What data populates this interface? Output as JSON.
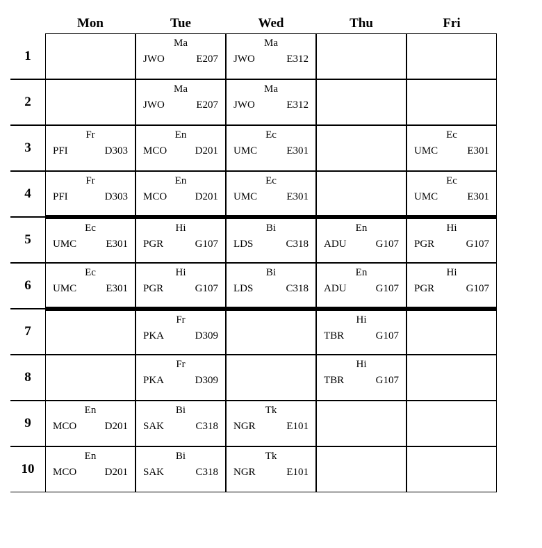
{
  "days": [
    "Mon",
    "Tue",
    "Wed",
    "Thu",
    "Fri"
  ],
  "periods": [
    "1",
    "2",
    "3",
    "4",
    "5",
    "6",
    "7",
    "8",
    "9",
    "10"
  ],
  "thickTopRows": [
    4,
    6
  ],
  "thickBotRows": [
    3,
    5
  ],
  "grid": [
    [
      null,
      {
        "subj": "Ma",
        "t": "JWO",
        "r": "E207"
      },
      {
        "subj": "Ma",
        "t": "JWO",
        "r": "E312"
      },
      null,
      null
    ],
    [
      null,
      {
        "subj": "Ma",
        "t": "JWO",
        "r": "E207"
      },
      {
        "subj": "Ma",
        "t": "JWO",
        "r": "E312"
      },
      null,
      null
    ],
    [
      {
        "subj": "Fr",
        "t": "PFI",
        "r": "D303"
      },
      {
        "subj": "En",
        "t": "MCO",
        "r": "D201"
      },
      {
        "subj": "Ec",
        "t": "UMC",
        "r": "E301"
      },
      null,
      {
        "subj": "Ec",
        "t": "UMC",
        "r": "E301"
      }
    ],
    [
      {
        "subj": "Fr",
        "t": "PFI",
        "r": "D303"
      },
      {
        "subj": "En",
        "t": "MCO",
        "r": "D201"
      },
      {
        "subj": "Ec",
        "t": "UMC",
        "r": "E301"
      },
      null,
      {
        "subj": "Ec",
        "t": "UMC",
        "r": "E301"
      }
    ],
    [
      {
        "subj": "Ec",
        "t": "UMC",
        "r": "E301"
      },
      {
        "subj": "Hi",
        "t": "PGR",
        "r": "G107"
      },
      {
        "subj": "Bi",
        "t": "LDS",
        "r": "C318"
      },
      {
        "subj": "En",
        "t": "ADU",
        "r": "G107"
      },
      {
        "subj": "Hi",
        "t": "PGR",
        "r": "G107"
      }
    ],
    [
      {
        "subj": "Ec",
        "t": "UMC",
        "r": "E301"
      },
      {
        "subj": "Hi",
        "t": "PGR",
        "r": "G107"
      },
      {
        "subj": "Bi",
        "t": "LDS",
        "r": "C318"
      },
      {
        "subj": "En",
        "t": "ADU",
        "r": "G107"
      },
      {
        "subj": "Hi",
        "t": "PGR",
        "r": "G107"
      }
    ],
    [
      null,
      {
        "subj": "Fr",
        "t": "PKA",
        "r": "D309"
      },
      null,
      {
        "subj": "Hi",
        "t": "TBR",
        "r": "G107"
      },
      null
    ],
    [
      null,
      {
        "subj": "Fr",
        "t": "PKA",
        "r": "D309"
      },
      null,
      {
        "subj": "Hi",
        "t": "TBR",
        "r": "G107"
      },
      null
    ],
    [
      {
        "subj": "En",
        "t": "MCO",
        "r": "D201"
      },
      {
        "subj": "Bi",
        "t": "SAK",
        "r": "C318"
      },
      {
        "subj": "Tk",
        "t": "NGR",
        "r": "E101"
      },
      null,
      null
    ],
    [
      {
        "subj": "En",
        "t": "MCO",
        "r": "D201"
      },
      {
        "subj": "Bi",
        "t": "SAK",
        "r": "C318"
      },
      {
        "subj": "Tk",
        "t": "NGR",
        "r": "E101"
      },
      null,
      null
    ]
  ]
}
